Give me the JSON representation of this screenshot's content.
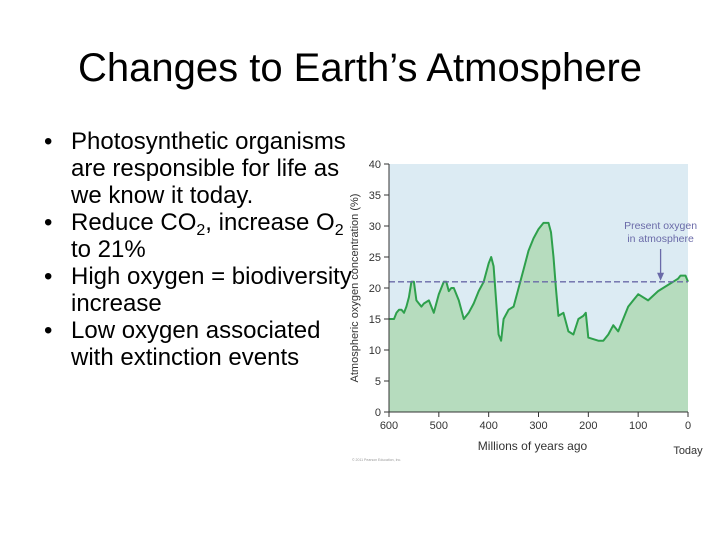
{
  "slide": {
    "title": "Changes to Earth’s Atmosphere",
    "bullets": [
      {
        "text": "Photosynthetic organisms are responsible for life as we know it today."
      },
      {
        "pre": "Reduce CO",
        "sub1": "2",
        "mid": ", increase O",
        "sub2": "2",
        "post": " to 21%"
      },
      {
        "text": "High oxygen = biodiversity increase"
      },
      {
        "text": "Low oxygen associated with extinction events"
      }
    ]
  },
  "chart_data": {
    "type": "area",
    "xlabel": "Millions of years ago",
    "ylabel": "Atmospheric oxygen concentration (%)",
    "xlim": [
      600,
      0
    ],
    "ylim": [
      0,
      40
    ],
    "xticks": [
      600,
      500,
      400,
      300,
      200,
      100,
      0
    ],
    "yticks": [
      0,
      5,
      10,
      15,
      20,
      25,
      30,
      35,
      40
    ],
    "x_end_label": "Today",
    "reference_line": {
      "value": 21,
      "label": "Present oxygen in atmosphere"
    },
    "colors": {
      "plot_bg": "#dcebf3",
      "fill": "#b6dcbe",
      "line": "#2ea04c",
      "ref": "#6a6aa8",
      "axis": "#333333"
    },
    "x": [
      600,
      590,
      585,
      580,
      575,
      570,
      565,
      560,
      555,
      550,
      545,
      540,
      535,
      530,
      520,
      510,
      500,
      490,
      485,
      480,
      475,
      470,
      460,
      450,
      440,
      430,
      420,
      410,
      405,
      400,
      395,
      390,
      385,
      380,
      375,
      370,
      360,
      350,
      340,
      330,
      320,
      310,
      300,
      295,
      290,
      280,
      275,
      270,
      265,
      260,
      250,
      240,
      230,
      220,
      210,
      205,
      200,
      180,
      170,
      160,
      150,
      140,
      130,
      120,
      110,
      100,
      80,
      60,
      40,
      30,
      20,
      15,
      10,
      5,
      0
    ],
    "y": [
      15,
      15,
      16,
      16.5,
      16.5,
      16,
      17,
      18.5,
      21,
      21,
      18,
      17.5,
      17,
      17.5,
      18,
      16,
      19,
      21,
      21,
      19.5,
      20,
      20,
      18,
      15,
      16,
      17.5,
      19.5,
      21,
      22.5,
      24,
      25,
      23.5,
      18,
      12.5,
      11.5,
      15,
      16.5,
      17,
      20,
      23,
      26,
      28,
      29.5,
      30,
      30.5,
      30.5,
      29,
      25,
      20,
      15.5,
      16,
      13,
      12.5,
      15,
      15.5,
      16,
      12,
      11.5,
      11.5,
      12.5,
      14,
      13,
      15,
      17,
      18,
      19,
      18,
      19.5,
      20.5,
      21,
      21.5,
      22,
      22,
      22,
      21
    ]
  },
  "credit": "© 2011 Pearson Education, Inc."
}
